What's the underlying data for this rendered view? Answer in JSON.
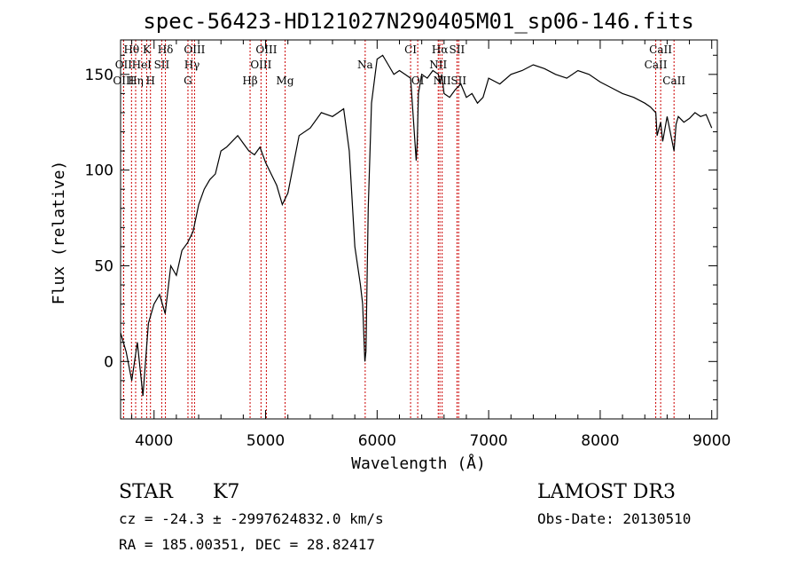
{
  "chart_data": {
    "type": "line",
    "title": "spec-56423-HD121027N290405M01_sp06-146.fits",
    "xlabel": "Wavelength (Å)",
    "ylabel": "Flux (relative)",
    "xlim": [
      3700,
      9050
    ],
    "ylim": [
      -30,
      168
    ],
    "x_ticks": [
      4000,
      5000,
      6000,
      7000,
      8000,
      9000
    ],
    "y_ticks": [
      0,
      50,
      100,
      150
    ],
    "x_tick_labels": [
      "4000",
      "5000",
      "6000",
      "7000",
      "8000",
      "9000"
    ],
    "y_tick_labels": [
      "0",
      "50",
      "100",
      "150"
    ],
    "grid": false,
    "series": [
      {
        "x": [
          3700,
          3750,
          3800,
          3850,
          3900,
          3950,
          4000,
          4050,
          4100,
          4150,
          4200,
          4250,
          4300,
          4350,
          4400,
          4450,
          4500,
          4550,
          4600,
          4650,
          4700,
          4750,
          4800,
          4850,
          4900,
          4950,
          5000,
          5050,
          5100,
          5150,
          5200,
          5300,
          5400,
          5500,
          5600,
          5700,
          5750,
          5800,
          5850,
          5870,
          5890,
          5900,
          5920,
          5950,
          6000,
          6050,
          6100,
          6150,
          6200,
          6250,
          6300,
          6350,
          6360,
          6370,
          6400,
          6450,
          6500,
          6550,
          6563,
          6580,
          6600,
          6650,
          6700,
          6750,
          6800,
          6850,
          6900,
          6950,
          7000,
          7100,
          7200,
          7300,
          7400,
          7500,
          7600,
          7700,
          7800,
          7900,
          8000,
          8100,
          8200,
          8300,
          8400,
          8450,
          8498,
          8510,
          8542,
          8560,
          8600,
          8662,
          8680,
          8700,
          8750,
          8800,
          8850,
          8900,
          8950,
          9000
        ],
        "y": [
          15,
          5,
          -10,
          10,
          -18,
          20,
          30,
          35,
          25,
          50,
          45,
          58,
          62,
          68,
          82,
          90,
          95,
          98,
          110,
          112,
          115,
          118,
          114,
          110,
          108,
          112,
          104,
          98,
          92,
          82,
          88,
          118,
          122,
          130,
          128,
          132,
          110,
          60,
          40,
          30,
          0,
          5,
          80,
          135,
          158,
          160,
          155,
          150,
          152,
          150,
          148,
          105,
          115,
          140,
          150,
          148,
          152,
          150,
          145,
          150,
          140,
          138,
          142,
          145,
          138,
          140,
          135,
          138,
          148,
          145,
          150,
          152,
          155,
          153,
          150,
          148,
          152,
          150,
          146,
          143,
          140,
          138,
          135,
          133,
          130,
          118,
          125,
          115,
          128,
          110,
          124,
          128,
          125,
          127,
          130,
          128,
          129,
          122
        ]
      }
    ],
    "line_labels": [
      {
        "text": "Hθ",
        "x": 3798,
        "row": 1
      },
      {
        "text": "K",
        "x": 3934,
        "row": 1
      },
      {
        "text": "Hδ",
        "x": 4102,
        "row": 1
      },
      {
        "text": "OIII",
        "x": 4363,
        "row": 1
      },
      {
        "text": "OIII",
        "x": 5007,
        "row": 1
      },
      {
        "text": "CI",
        "x": 6300,
        "row": 1
      },
      {
        "text": "Hα",
        "x": 6563,
        "row": 1
      },
      {
        "text": "SII",
        "x": 6716,
        "row": 1
      },
      {
        "text": "CaII",
        "x": 8542,
        "row": 1
      },
      {
        "text": "OII",
        "x": 3727,
        "row": 2
      },
      {
        "text": "HeI",
        "x": 3889,
        "row": 2
      },
      {
        "text": "SII",
        "x": 4069,
        "row": 2
      },
      {
        "text": "Hγ",
        "x": 4340,
        "row": 2
      },
      {
        "text": "OIII",
        "x": 4959,
        "row": 2
      },
      {
        "text": "Na",
        "x": 5893,
        "row": 2
      },
      {
        "text": "NII",
        "x": 6548,
        "row": 2
      },
      {
        "text": "CaII",
        "x": 8498,
        "row": 2
      },
      {
        "text": "OIII",
        "x": 3727,
        "row": 3
      },
      {
        "text": "Hη",
        "x": 3835,
        "row": 3
      },
      {
        "text": "H",
        "x": 3968,
        "row": 3
      },
      {
        "text": "G",
        "x": 4304,
        "row": 3
      },
      {
        "text": "Hβ",
        "x": 4861,
        "row": 3
      },
      {
        "text": "Mg",
        "x": 5175,
        "row": 3
      },
      {
        "text": "OI",
        "x": 6364,
        "row": 3
      },
      {
        "text": "NII",
        "x": 6583,
        "row": 3
      },
      {
        "text": "SII",
        "x": 6731,
        "row": 3
      },
      {
        "text": "CaII",
        "x": 8662,
        "row": 3
      }
    ],
    "line_color": "#000000",
    "marker_color": "#cc0000"
  },
  "info": {
    "object_type": "STAR",
    "subclass": "K7",
    "survey": "LAMOST DR3",
    "cz": "cz = -24.3 ± -2997624832.0 km/s",
    "obs_date": "Obs-Date: 20130510",
    "coords": "RA = 185.00351, DEC =  28.82417"
  }
}
